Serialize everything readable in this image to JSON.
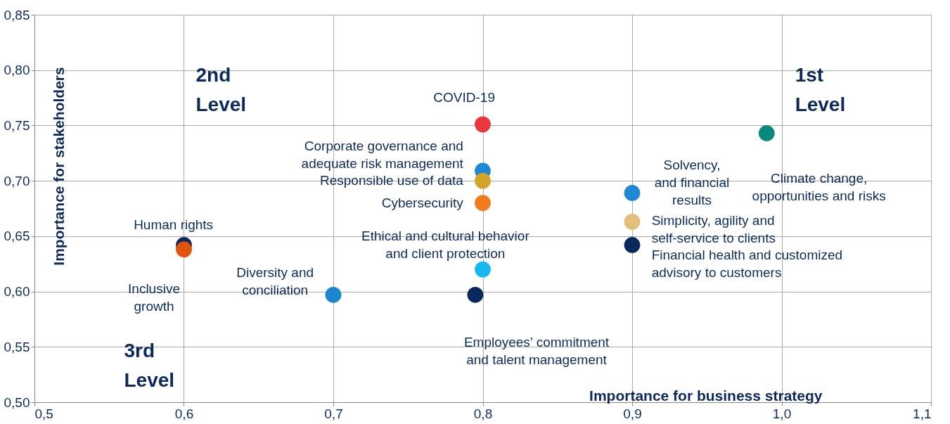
{
  "chart_data": {
    "type": "scatter",
    "xlabel": "Importance for business strategy",
    "ylabel": "Importance for stakeholders",
    "xlim": [
      0.5,
      1.1
    ],
    "xticks": [
      {
        "value": 0.5,
        "label": "0,5"
      },
      {
        "value": 0.6,
        "label": "0,6"
      },
      {
        "value": 0.7,
        "label": "0,7"
      },
      {
        "value": 0.8,
        "label": "0,8"
      },
      {
        "value": 0.9,
        "label": "0,9"
      },
      {
        "value": 1.0,
        "label": "1,0"
      },
      {
        "value": 1.1,
        "label": "1,1"
      }
    ],
    "ylim": [
      0.5,
      0.85
    ],
    "yticks": [
      {
        "value": 0.5,
        "label": "0,50"
      },
      {
        "value": 0.55,
        "label": "0,55"
      },
      {
        "value": 0.6,
        "label": "0,60"
      },
      {
        "value": 0.65,
        "label": "0,65"
      },
      {
        "value": 0.7,
        "label": "0,70"
      },
      {
        "value": 0.75,
        "label": "0,75"
      },
      {
        "value": 0.8,
        "label": "0,80"
      },
      {
        "value": 0.85,
        "label": "0,85"
      }
    ],
    "grid": true,
    "legend": false,
    "marker": "circle",
    "annotations": [
      "2nd Level",
      "1st Level",
      "3rd Level"
    ],
    "series": [
      {
        "name": "COVID-19",
        "color": "#e8383d",
        "x": [
          0.8
        ],
        "values": [
          0.751
        ]
      },
      {
        "name": "Corporate governance and adequate risk management",
        "color": "#1e88d4",
        "x": [
          0.8
        ],
        "values": [
          0.709
        ]
      },
      {
        "name": "Responsible use of data",
        "color": "#d4a42a",
        "x": [
          0.8
        ],
        "values": [
          0.7
        ]
      },
      {
        "name": "Cybersecurity",
        "color": "#f07c1e",
        "x": [
          0.8
        ],
        "values": [
          0.68
        ]
      },
      {
        "name": "Ethical and cultural behavior and client protection",
        "color": "#17b8f0",
        "x": [
          0.8
        ],
        "values": [
          0.62
        ]
      },
      {
        "name": "Employees’ commitment and talent management",
        "color": "#0a2a5c",
        "x": [
          0.795
        ],
        "values": [
          0.597
        ]
      },
      {
        "name": "Diversity and conciliation",
        "color": "#1a86d0",
        "x": [
          0.7
        ],
        "values": [
          0.597
        ]
      },
      {
        "name": "Human rights",
        "color": "#0a2a5c",
        "x": [
          0.6
        ],
        "values": [
          0.642
        ]
      },
      {
        "name": "Inclusive growth",
        "color": "#e0540c",
        "x": [
          0.6
        ],
        "values": [
          0.638
        ]
      },
      {
        "name": "Solvency, and financial results",
        "color": "#1e88d4",
        "x": [
          0.9
        ],
        "values": [
          0.689
        ]
      },
      {
        "name": "Climate change, opportunities and risks",
        "color": "#0a8a7a",
        "x": [
          0.99
        ],
        "values": [
          0.743
        ]
      },
      {
        "name": "Simplicity, agility and self-service to clients",
        "color": "#e3c07a",
        "x": [
          0.9
        ],
        "values": [
          0.663
        ]
      },
      {
        "name": "Financial health and customized advisory to customers",
        "color": "#0a2a5c",
        "x": [
          0.9
        ],
        "values": [
          0.642
        ]
      }
    ]
  }
}
